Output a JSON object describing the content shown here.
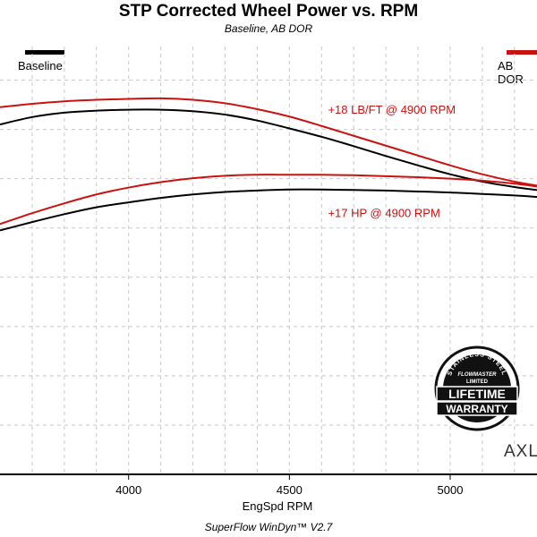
{
  "chart_data": {
    "type": "line",
    "title": "STP Corrected Wheel Power vs. RPM",
    "subtitle": "Baseline, AB DOR",
    "xlabel": "EngSpd  RPM",
    "ylabel": "",
    "xlim": [
      3600,
      5270
    ],
    "ylim": [
      0,
      8.5
    ],
    "x_ticks": [
      4000,
      4500,
      5000
    ],
    "x_tick_labels": [
      "4000",
      "4500",
      "5000"
    ],
    "grid": true,
    "legend": [
      {
        "name": "Baseline",
        "color": "#000000",
        "position": "top-left"
      },
      {
        "name": "AB DOR",
        "color": "#cc1111",
        "position": "top-right"
      }
    ],
    "series": [
      {
        "name": "Baseline torque",
        "legend": "Baseline",
        "color": "#000000",
        "x": [
          3600,
          3700,
          3800,
          3900,
          4000,
          4100,
          4200,
          4300,
          4400,
          4500,
          4600,
          4700,
          4800,
          4900,
          5000,
          5100,
          5200,
          5270
        ],
        "y": [
          7.1,
          7.25,
          7.34,
          7.38,
          7.4,
          7.4,
          7.37,
          7.3,
          7.18,
          7.02,
          6.85,
          6.66,
          6.46,
          6.27,
          6.09,
          5.94,
          5.83,
          5.77
        ]
      },
      {
        "name": "AB DOR torque",
        "legend": "AB DOR",
        "color": "#cc1111",
        "x": [
          3600,
          3700,
          3800,
          3900,
          4000,
          4100,
          4200,
          4300,
          4400,
          4500,
          4600,
          4700,
          4800,
          4900,
          5000,
          5100,
          5200,
          5270
        ],
        "y": [
          7.45,
          7.52,
          7.57,
          7.6,
          7.62,
          7.63,
          7.6,
          7.53,
          7.41,
          7.26,
          7.07,
          6.87,
          6.67,
          6.47,
          6.27,
          6.09,
          5.94,
          5.86
        ]
      },
      {
        "name": "Baseline horsepower",
        "legend": "Baseline",
        "color": "#000000",
        "x": [
          3600,
          3700,
          3800,
          3900,
          4000,
          4100,
          4200,
          4300,
          4400,
          4500,
          4600,
          4700,
          4800,
          4900,
          5000,
          5100,
          5200,
          5270
        ],
        "y": [
          4.95,
          5.12,
          5.28,
          5.42,
          5.52,
          5.61,
          5.68,
          5.73,
          5.76,
          5.78,
          5.78,
          5.77,
          5.76,
          5.74,
          5.72,
          5.69,
          5.66,
          5.63
        ]
      },
      {
        "name": "AB DOR horsepower",
        "legend": "AB DOR",
        "color": "#cc1111",
        "x": [
          3600,
          3700,
          3800,
          3900,
          4000,
          4100,
          4200,
          4300,
          4400,
          4500,
          4600,
          4700,
          4800,
          4900,
          5000,
          5100,
          5200,
          5270
        ],
        "y": [
          5.08,
          5.3,
          5.5,
          5.68,
          5.82,
          5.93,
          6.01,
          6.06,
          6.08,
          6.08,
          6.08,
          6.07,
          6.05,
          6.03,
          6.0,
          5.96,
          5.9,
          5.84
        ]
      }
    ],
    "annotations": [
      {
        "text": "+18 LB/FT @ 4900 RPM",
        "color": "#cc1111",
        "x": 4620,
        "y": 7.32
      },
      {
        "text": "+17 HP @ 4900 RPM",
        "color": "#cc1111",
        "x": 4620,
        "y": 5.22
      }
    ]
  },
  "footer": "SuperFlow WinDyn™  V2.7",
  "badge": {
    "top_arc": "STAINLESS STEEL",
    "brand": "FLOWMASTER",
    "limited": "LIMITED",
    "line1": "LIFETIME",
    "line2": "WARRANTY"
  },
  "watermark": "AXL"
}
